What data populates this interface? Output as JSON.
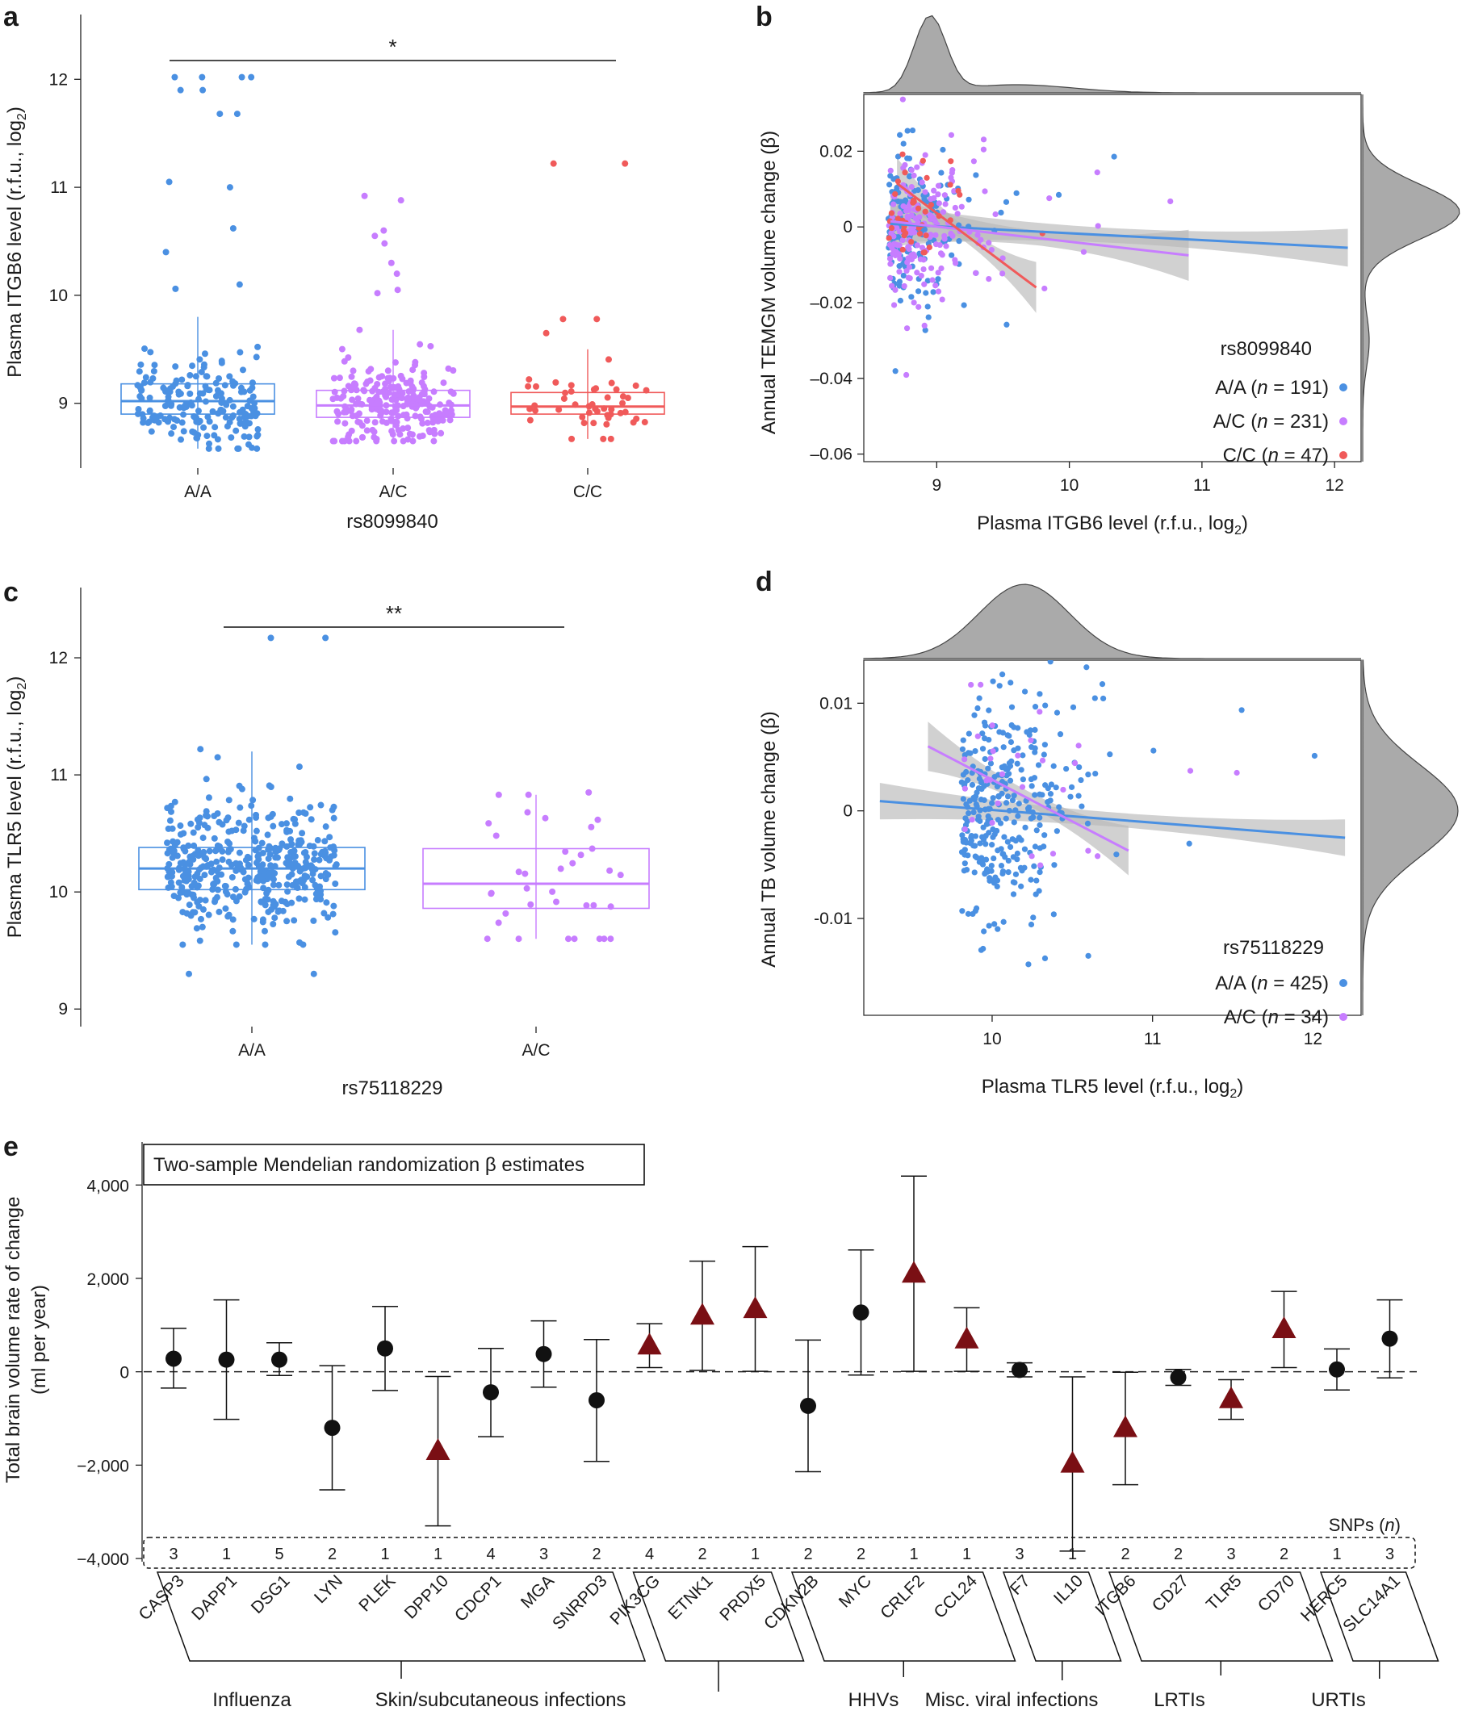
{
  "colors": {
    "aa": "#4a90e2",
    "ac": "#c77dff",
    "cc": "#f05a5a",
    "ci_band": "#b8b8b8",
    "density": "#aaaaaa",
    "triangle": "#7a0f14",
    "circle": "#111111"
  },
  "chart_data": [
    {
      "panel": "a",
      "type": "box+strip",
      "xlabel": "rs8099840",
      "ylabel": "Plasma ITGB6 level (r.f.u., log2)",
      "ylim": [
        8.4,
        12.6
      ],
      "yticks": [
        "9",
        "10",
        "11",
        "12"
      ],
      "categories": [
        "A/A",
        "A/C",
        "C/C"
      ],
      "boxes": [
        {
          "q1": 8.9,
          "median": 9.02,
          "q3": 9.18,
          "wlo": 8.58,
          "whi": 9.8,
          "n": 191,
          "outliers": [
            12.02,
            12.02,
            12.02,
            12.02,
            11.9,
            11.9,
            11.68,
            11.68,
            11.05,
            11.0,
            10.62,
            10.4,
            10.1,
            10.06
          ]
        },
        {
          "q1": 8.87,
          "median": 8.98,
          "q3": 9.12,
          "wlo": 8.65,
          "whi": 9.68,
          "n": 231,
          "outliers": [
            10.92,
            10.88,
            10.6,
            10.55,
            10.48,
            10.3,
            10.2,
            10.05,
            10.02
          ]
        },
        {
          "q1": 8.9,
          "median": 8.97,
          "q3": 9.1,
          "wlo": 8.67,
          "whi": 9.5,
          "n": 47,
          "outliers": [
            11.22,
            11.22,
            9.78,
            9.78,
            9.65
          ]
        }
      ],
      "significance": {
        "from": "A/A",
        "to": "C/C",
        "label": "*"
      }
    },
    {
      "panel": "b",
      "type": "scatter+regression",
      "xlabel": "Plasma ITGB6 level (r.f.u., log2)",
      "ylabel": "Annual TEMGM volume change (β)",
      "xlim": [
        8.45,
        12.2
      ],
      "ylim": [
        -0.062,
        0.035
      ],
      "xticks": [
        "9",
        "10",
        "11",
        "12"
      ],
      "yticks": [
        "0.02",
        "0",
        "–0.02",
        "–0.04",
        "–0.06"
      ],
      "legend_title": "rs8099840",
      "series": [
        {
          "name": "A/A",
          "n": "191",
          "line": [
            [
              8.65,
              0.0008
            ],
            [
              12.1,
              -0.0055
            ]
          ]
        },
        {
          "name": "A/C",
          "n": "231",
          "line": [
            [
              8.65,
              0.0015
            ],
            [
              10.9,
              -0.0075
            ]
          ]
        },
        {
          "name": "C/C",
          "n": "47",
          "line": [
            [
              8.7,
              0.0115
            ],
            [
              9.75,
              -0.016
            ]
          ]
        }
      ]
    },
    {
      "panel": "c",
      "type": "box+strip",
      "xlabel": "rs75118229",
      "ylabel": "Plasma TLR5 level (r.f.u., log2)",
      "ylim": [
        8.85,
        12.6
      ],
      "yticks": [
        "9",
        "10",
        "11",
        "12"
      ],
      "categories": [
        "A/A",
        "A/C"
      ],
      "boxes": [
        {
          "q1": 10.02,
          "median": 10.2,
          "q3": 10.38,
          "wlo": 9.55,
          "whi": 11.2,
          "n": 425,
          "outliers": [
            12.17,
            12.17,
            11.22,
            11.15,
            9.3,
            9.3
          ]
        },
        {
          "q1": 9.86,
          "median": 10.07,
          "q3": 10.37,
          "wlo": 9.6,
          "whi": 10.83,
          "n": 34,
          "outliers": [
            10.85,
            10.68
          ]
        }
      ],
      "significance": {
        "from": "A/A",
        "to": "A/C",
        "label": "**"
      }
    },
    {
      "panel": "d",
      "type": "scatter+regression",
      "xlabel": "Plasma TLR5 level (r.f.u., log2)",
      "ylabel": "Annual TB volume change (β)",
      "xlim": [
        9.2,
        12.3
      ],
      "ylim": [
        -0.019,
        0.014
      ],
      "xticks": [
        "10",
        "11",
        "12"
      ],
      "yticks": [
        "0.01",
        "0",
        "-0.01"
      ],
      "legend_title": "rs75118229",
      "series": [
        {
          "name": "A/A",
          "n": "425",
          "line": [
            [
              9.3,
              0.0009
            ],
            [
              12.2,
              -0.0025
            ]
          ]
        },
        {
          "name": "A/C",
          "n": "34",
          "line": [
            [
              9.6,
              0.006
            ],
            [
              10.85,
              -0.0037
            ]
          ]
        }
      ]
    },
    {
      "panel": "e",
      "type": "forest",
      "title": "Two-sample Mendelian randomization β estimates",
      "ylabel": "Total brain volume rate of change (ml per year)",
      "ylim": [
        -4500,
        4800
      ],
      "yticks": [
        "4,000",
        "2,000",
        "0",
        "−2,000",
        "−4,000"
      ],
      "snp_header": "SNPs (n)",
      "genes": [
        {
          "name": "CASP3",
          "beta": 280,
          "lo": -350,
          "hi": 930,
          "snps": "3",
          "shape": "circle"
        },
        {
          "name": "DAPP1",
          "beta": 260,
          "lo": -1020,
          "hi": 1540,
          "snps": "1",
          "shape": "circle"
        },
        {
          "name": "DSG1",
          "beta": 260,
          "lo": -80,
          "hi": 620,
          "snps": "5",
          "shape": "circle"
        },
        {
          "name": "LYN",
          "beta": -1200,
          "lo": -2530,
          "hi": 130,
          "snps": "2",
          "shape": "circle"
        },
        {
          "name": "PLEK",
          "beta": 500,
          "lo": -400,
          "hi": 1400,
          "snps": "1",
          "shape": "circle"
        },
        {
          "name": "DPP10",
          "beta": -1700,
          "lo": -3300,
          "hi": -100,
          "snps": "1",
          "shape": "triangle"
        },
        {
          "name": "CDCP1",
          "beta": -440,
          "lo": -1390,
          "hi": 500,
          "snps": "4",
          "shape": "circle"
        },
        {
          "name": "MGA",
          "beta": 380,
          "lo": -330,
          "hi": 1090,
          "snps": "3",
          "shape": "circle"
        },
        {
          "name": "SNRPD3",
          "beta": -610,
          "lo": -1920,
          "hi": 690,
          "snps": "2",
          "shape": "circle"
        },
        {
          "name": "PIK3CG",
          "beta": 560,
          "lo": 90,
          "hi": 1030,
          "snps": "4",
          "shape": "triangle"
        },
        {
          "name": "ETNK1",
          "beta": 1200,
          "lo": 30,
          "hi": 2370,
          "snps": "2",
          "shape": "triangle"
        },
        {
          "name": "PRDX5",
          "beta": 1340,
          "lo": 10,
          "hi": 2680,
          "snps": "1",
          "shape": "triangle"
        },
        {
          "name": "CDKN2B",
          "beta": -730,
          "lo": -2140,
          "hi": 680,
          "snps": "2",
          "shape": "circle"
        },
        {
          "name": "MYC",
          "beta": 1270,
          "lo": -70,
          "hi": 2610,
          "snps": "2",
          "shape": "circle"
        },
        {
          "name": "CRLF2",
          "beta": 2100,
          "lo": 10,
          "hi": 4190,
          "snps": "1",
          "shape": "triangle"
        },
        {
          "name": "CCL24",
          "beta": 690,
          "lo": 10,
          "hi": 1370,
          "snps": "1",
          "shape": "triangle"
        },
        {
          "name": "F7",
          "beta": 40,
          "lo": -110,
          "hi": 190,
          "snps": "3",
          "shape": "circle"
        },
        {
          "name": "IL10",
          "beta": -1970,
          "lo": -3840,
          "hi": -110,
          "snps": "1",
          "shape": "triangle"
        },
        {
          "name": "ITGB6",
          "beta": -1210,
          "lo": -2420,
          "hi": -10,
          "snps": "2",
          "shape": "triangle"
        },
        {
          "name": "CD27",
          "beta": -120,
          "lo": -290,
          "hi": 50,
          "snps": "2",
          "shape": "circle"
        },
        {
          "name": "TLR5",
          "beta": -590,
          "lo": -1020,
          "hi": -170,
          "snps": "3",
          "shape": "triangle"
        },
        {
          "name": "CD70",
          "beta": 910,
          "lo": 90,
          "hi": 1720,
          "snps": "2",
          "shape": "triangle"
        },
        {
          "name": "HERC5",
          "beta": 50,
          "lo": -390,
          "hi": 490,
          "snps": "1",
          "shape": "circle"
        },
        {
          "name": "SLC14A1",
          "beta": 710,
          "lo": -130,
          "hi": 1540,
          "snps": "3",
          "shape": "circle"
        }
      ],
      "groups": [
        {
          "label": "Influenza",
          "from": "CASP3",
          "to": "SNRPD3"
        },
        {
          "label": "Skin/subcutaneous infections",
          "from": "PIK3CG",
          "to": "PRDX5"
        },
        {
          "label": "HHVs",
          "from": "CDKN2B",
          "to": "CCL24"
        },
        {
          "label": "Misc. viral infections",
          "from": "F7",
          "to": "IL10"
        },
        {
          "label": "LRTIs",
          "from": "ITGB6",
          "to": "CD70"
        },
        {
          "label": "URTIs",
          "from": "HERC5",
          "to": "SLC14A1"
        }
      ]
    }
  ]
}
